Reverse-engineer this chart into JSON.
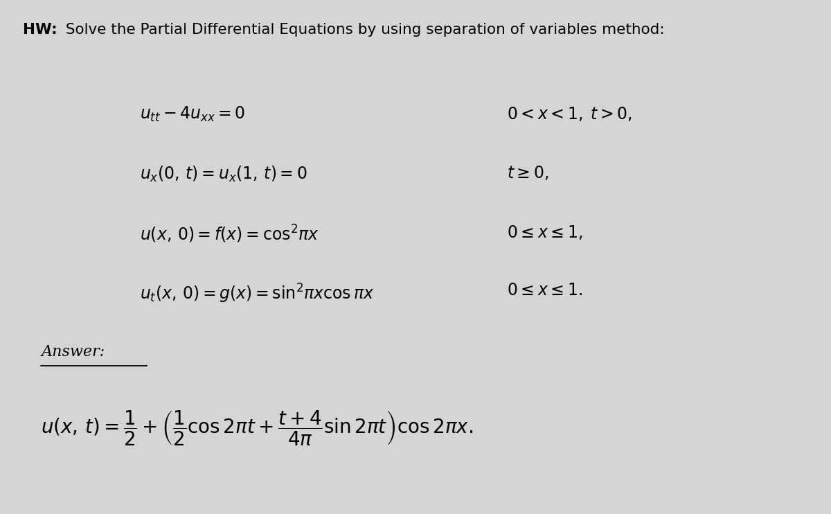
{
  "background_color": "#d5d5d5",
  "text_color": "#000000",
  "title_bold": "HW:",
  "title_rest": " Solve the Partial Differential Equations by using separation of variables method:",
  "title_fontsize": 15.5,
  "eq_fontsize": 17,
  "answer_fontsize": 20,
  "answer_label_fontsize": 16,
  "answer_label": "Answer:"
}
